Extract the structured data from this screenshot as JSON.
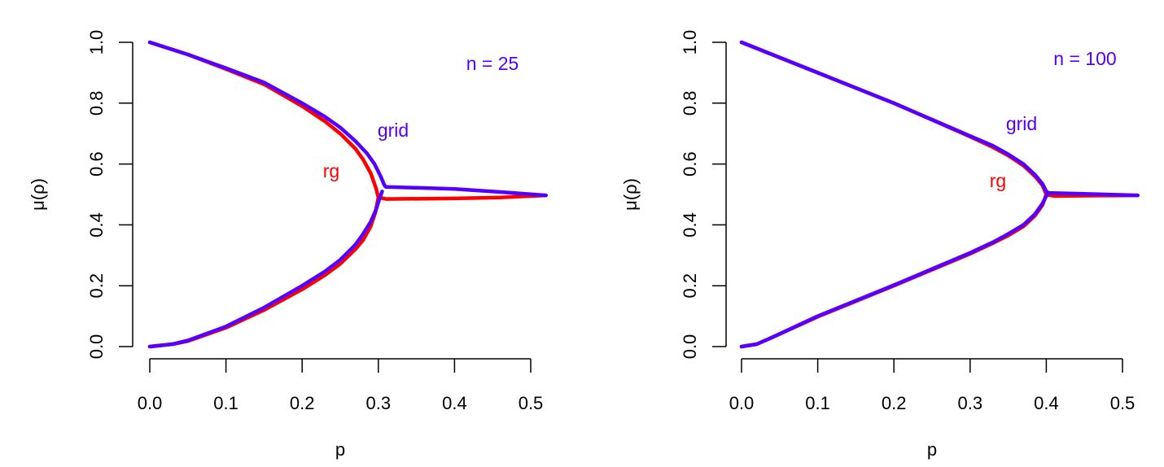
{
  "chart_data": [
    {
      "type": "scatter",
      "xlabel": "p",
      "ylabel": "μ(ρ)",
      "xlim": [
        0,
        0.52
      ],
      "ylim": [
        0,
        1
      ],
      "xticks": [
        "0.0",
        "0.1",
        "0.2",
        "0.3",
        "0.4",
        "0.5"
      ],
      "yticks": [
        "0.0",
        "0.2",
        "0.4",
        "0.6",
        "0.8",
        "1.0"
      ],
      "annotation": "n = 25",
      "series": [
        {
          "name": "rg",
          "color": "#ff0000",
          "upper": [
            [
              0,
              1
            ],
            [
              0.05,
              0.96
            ],
            [
              0.1,
              0.912
            ],
            [
              0.15,
              0.862
            ],
            [
              0.2,
              0.79
            ],
            [
              0.23,
              0.74
            ],
            [
              0.25,
              0.7
            ],
            [
              0.27,
              0.65
            ],
            [
              0.28,
              0.615
            ],
            [
              0.29,
              0.57
            ],
            [
              0.297,
              0.52
            ],
            [
              0.3,
              0.49
            ]
          ],
          "lower": [
            [
              0,
              0
            ],
            [
              0.03,
              0.008
            ],
            [
              0.05,
              0.018
            ],
            [
              0.1,
              0.062
            ],
            [
              0.15,
              0.12
            ],
            [
              0.2,
              0.188
            ],
            [
              0.23,
              0.235
            ],
            [
              0.25,
              0.272
            ],
            [
              0.27,
              0.32
            ],
            [
              0.28,
              0.35
            ],
            [
              0.29,
              0.395
            ],
            [
              0.296,
              0.44
            ],
            [
              0.3,
              0.49
            ]
          ],
          "tail": [
            [
              0.3,
              0.49
            ],
            [
              0.31,
              0.485
            ],
            [
              0.4,
              0.487
            ],
            [
              0.46,
              0.49
            ],
            [
              0.52,
              0.497
            ]
          ]
        },
        {
          "name": "grid",
          "color": "#5500ff",
          "upper": [
            [
              0,
              1
            ],
            [
              0.05,
              0.96
            ],
            [
              0.1,
              0.915
            ],
            [
              0.15,
              0.868
            ],
            [
              0.2,
              0.8
            ],
            [
              0.23,
              0.755
            ],
            [
              0.25,
              0.72
            ],
            [
              0.27,
              0.675
            ],
            [
              0.285,
              0.635
            ],
            [
              0.295,
              0.6
            ],
            [
              0.303,
              0.56
            ],
            [
              0.308,
              0.53
            ],
            [
              0.31,
              0.525
            ]
          ],
          "lower": [
            [
              0,
              0
            ],
            [
              0.03,
              0.008
            ],
            [
              0.05,
              0.02
            ],
            [
              0.1,
              0.066
            ],
            [
              0.15,
              0.128
            ],
            [
              0.2,
              0.2
            ],
            [
              0.23,
              0.247
            ],
            [
              0.25,
              0.285
            ],
            [
              0.27,
              0.335
            ],
            [
              0.28,
              0.37
            ],
            [
              0.29,
              0.41
            ],
            [
              0.297,
              0.45
            ],
            [
              0.302,
              0.49
            ],
            [
              0.305,
              0.51
            ]
          ],
          "tail": [
            [
              0.31,
              0.525
            ],
            [
              0.35,
              0.522
            ],
            [
              0.4,
              0.518
            ],
            [
              0.46,
              0.508
            ],
            [
              0.52,
              0.497
            ]
          ]
        }
      ],
      "labels": {
        "grid": "grid",
        "rg": "rg"
      }
    },
    {
      "type": "scatter",
      "xlabel": "p",
      "ylabel": "μ(ρ)",
      "xlim": [
        0,
        0.52
      ],
      "ylim": [
        0,
        1
      ],
      "xticks": [
        "0.0",
        "0.1",
        "0.2",
        "0.3",
        "0.4",
        "0.5"
      ],
      "yticks": [
        "0.0",
        "0.2",
        "0.4",
        "0.6",
        "0.8",
        "1.0"
      ],
      "annotation": "n = 100",
      "series": [
        {
          "name": "rg",
          "color": "#ff0000",
          "upper": [
            [
              0,
              1
            ],
            [
              0.1,
              0.9
            ],
            [
              0.2,
              0.8
            ],
            [
              0.3,
              0.69
            ],
            [
              0.33,
              0.655
            ],
            [
              0.35,
              0.628
            ],
            [
              0.37,
              0.595
            ],
            [
              0.385,
              0.56
            ],
            [
              0.395,
              0.53
            ],
            [
              0.4,
              0.5
            ]
          ],
          "lower": [
            [
              0,
              0
            ],
            [
              0.02,
              0.008
            ],
            [
              0.04,
              0.03
            ],
            [
              0.1,
              0.098
            ],
            [
              0.2,
              0.2
            ],
            [
              0.3,
              0.305
            ],
            [
              0.33,
              0.34
            ],
            [
              0.35,
              0.365
            ],
            [
              0.37,
              0.395
            ],
            [
              0.385,
              0.43
            ],
            [
              0.395,
              0.465
            ],
            [
              0.4,
              0.5
            ]
          ],
          "tail": [
            [
              0.4,
              0.5
            ],
            [
              0.41,
              0.495
            ],
            [
              0.46,
              0.496
            ],
            [
              0.52,
              0.497
            ]
          ]
        },
        {
          "name": "grid",
          "color": "#5500ff",
          "upper": [
            [
              0,
              1
            ],
            [
              0.1,
              0.9
            ],
            [
              0.2,
              0.8
            ],
            [
              0.3,
              0.692
            ],
            [
              0.33,
              0.66
            ],
            [
              0.35,
              0.632
            ],
            [
              0.37,
              0.6
            ],
            [
              0.385,
              0.565
            ],
            [
              0.395,
              0.535
            ],
            [
              0.4,
              0.51
            ],
            [
              0.403,
              0.505
            ]
          ],
          "lower": [
            [
              0,
              0
            ],
            [
              0.02,
              0.008
            ],
            [
              0.04,
              0.03
            ],
            [
              0.1,
              0.1
            ],
            [
              0.2,
              0.202
            ],
            [
              0.3,
              0.308
            ],
            [
              0.33,
              0.343
            ],
            [
              0.35,
              0.37
            ],
            [
              0.37,
              0.4
            ],
            [
              0.385,
              0.435
            ],
            [
              0.395,
              0.47
            ],
            [
              0.4,
              0.495
            ],
            [
              0.403,
              0.505
            ]
          ],
          "tail": [
            [
              0.403,
              0.505
            ],
            [
              0.45,
              0.502
            ],
            [
              0.52,
              0.497
            ]
          ]
        }
      ],
      "labels": {
        "grid": "grid",
        "rg": "rg"
      }
    }
  ]
}
